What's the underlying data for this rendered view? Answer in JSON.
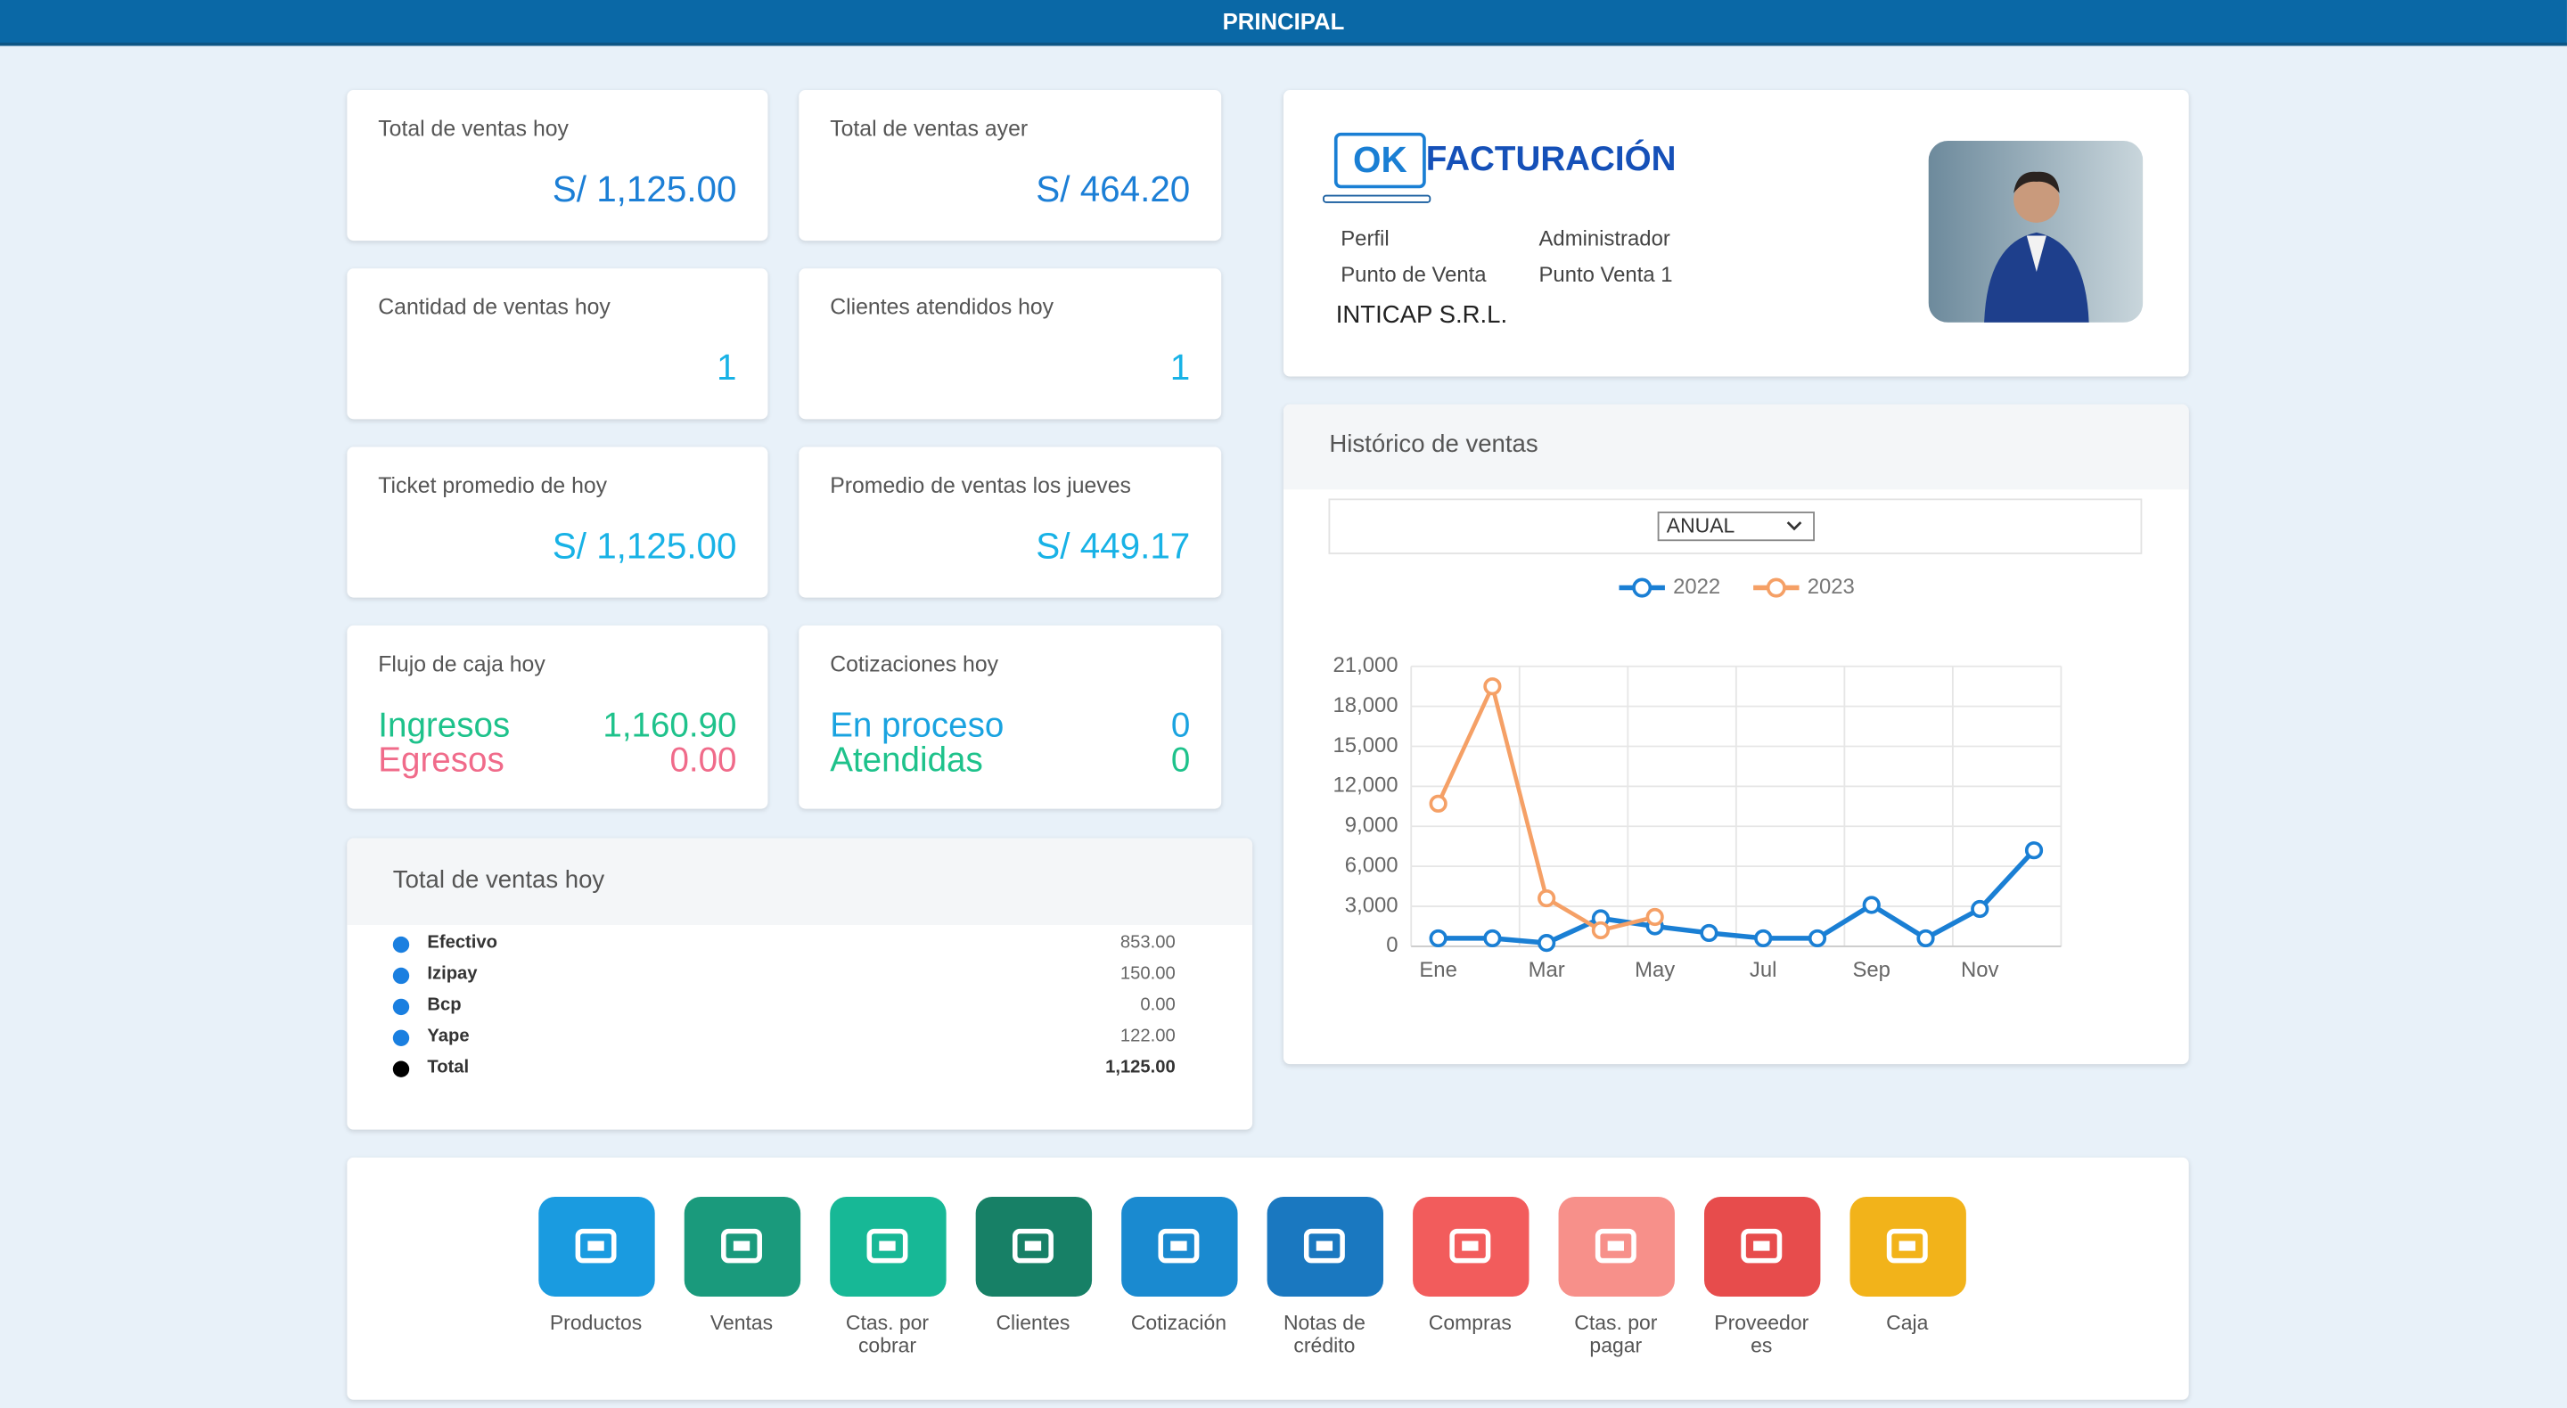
{
  "header": {
    "title": "PRINCIPAL"
  },
  "kpis": [
    {
      "label": "Total de ventas hoy",
      "value": "S/ 1,125.00"
    },
    {
      "label": "Total de ventas ayer",
      "value": "S/ 464.20"
    },
    {
      "label": "Cantidad de ventas hoy",
      "value": "1"
    },
    {
      "label": "Clientes atendidos hoy",
      "value": "1"
    },
    {
      "label": "Ticket promedio de hoy",
      "value": "S/ 1,125.00"
    },
    {
      "label": "Promedio de ventas los jueves",
      "value": "S/ 449.17"
    }
  ],
  "cash_flow": {
    "label": "Flujo de caja hoy",
    "rows": [
      {
        "label": "Ingresos",
        "value": "1,160.90"
      },
      {
        "label": "Egresos",
        "value": "0.00"
      }
    ]
  },
  "quotes": {
    "label": "Cotizaciones hoy",
    "rows": [
      {
        "label": "En proceso",
        "value": "0"
      },
      {
        "label": "Atendidas",
        "value": "0"
      }
    ]
  },
  "payments": {
    "title": "Total de ventas hoy",
    "rows": [
      {
        "label": "Efectivo",
        "value": "853.00"
      },
      {
        "label": "Izipay",
        "value": "150.00"
      },
      {
        "label": "Bcp",
        "value": "0.00"
      },
      {
        "label": "Yape",
        "value": "122.00"
      },
      {
        "label": "Total",
        "value": "1,125.00"
      }
    ]
  },
  "profile": {
    "logo_ok": "OK",
    "logo_text": "FACTURACIÓN",
    "fields": [
      {
        "label": "Perfil",
        "value": "Administrador"
      },
      {
        "label": "Punto de Venta",
        "value": "Punto Venta 1"
      }
    ],
    "company": "INTICAP S.R.L."
  },
  "chart_data": {
    "type": "line",
    "title": "Histórico de ventas",
    "period": "ANUAL",
    "categories": [
      "Ene",
      null,
      "Mar",
      null,
      "May",
      null,
      "Jul",
      null,
      "Sep",
      null,
      "Nov",
      null
    ],
    "series": [
      {
        "name": "2022",
        "color": "#1a7fd4",
        "values": [
          600,
          600,
          250,
          2100,
          1500,
          1000,
          600,
          600,
          3100,
          600,
          2800,
          7200
        ]
      },
      {
        "name": "2023",
        "color": "#f5a066",
        "values": [
          10700,
          19500,
          3600,
          1200,
          2200,
          null,
          null,
          null,
          null,
          null,
          null,
          null
        ]
      }
    ],
    "ylim": [
      0,
      21000
    ],
    "yticks": [
      0,
      {
        "value": 3000,
        "label": "3,000"
      },
      {
        "value": 6000,
        "label": "6,000"
      },
      {
        "value": 9000,
        "label": "9,000"
      },
      {
        "value": 12000,
        "label": "12,000"
      },
      {
        "value": 15000,
        "label": "15,000"
      },
      {
        "value": 18000,
        "label": "18,000"
      },
      {
        "value": 21000,
        "label": "21,000"
      }
    ],
    "grid": true
  },
  "menu": [
    {
      "label": "Productos",
      "color": "#1a9be0"
    },
    {
      "label": "Ventas",
      "color": "#1a9a7c"
    },
    {
      "label": "Ctas. por cobrar",
      "color": "#17b896"
    },
    {
      "label": "Clientes",
      "color": "#178066"
    },
    {
      "label": "Cotización",
      "color": "#1a8ad0"
    },
    {
      "label": "Notas de crédito",
      "color": "#1a78c0"
    },
    {
      "label": "Compras",
      "color": "#f25c5c"
    },
    {
      "label": "Ctas. por pagar",
      "color": "#f7908a"
    },
    {
      "label": "Proveedores",
      "color": "#e74c4c"
    },
    {
      "label": "Caja",
      "color": "#f2b31a"
    }
  ]
}
